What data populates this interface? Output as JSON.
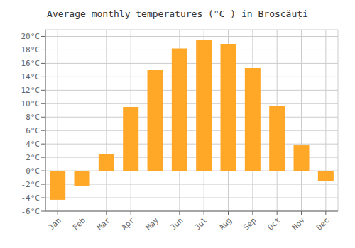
{
  "chart_data": {
    "type": "bar",
    "title": "Average monthly temperatures (°C ) in Broscăuți",
    "categories": [
      "Jan",
      "Feb",
      "Mar",
      "Apr",
      "May",
      "Jun",
      "Jul",
      "Aug",
      "Sep",
      "Oct",
      "Nov",
      "Dec"
    ],
    "values": [
      -4.3,
      -2.2,
      2.5,
      9.5,
      15.0,
      18.2,
      19.5,
      18.9,
      15.3,
      9.7,
      3.8,
      -1.5
    ],
    "color": "#FFA726",
    "ylim": [
      -6,
      21
    ],
    "yticks": [
      {
        "value": -6,
        "label": "-6°C"
      },
      {
        "value": -4,
        "label": "-4°C"
      },
      {
        "value": -2,
        "label": "-2°C"
      },
      {
        "value": 0,
        "label": "0°C"
      },
      {
        "value": 2,
        "label": "2°C"
      },
      {
        "value": 4,
        "label": "4°C"
      },
      {
        "value": 6,
        "label": "6°C"
      },
      {
        "value": 8,
        "label": "8°C"
      },
      {
        "value": 10,
        "label": "10°C"
      },
      {
        "value": 12,
        "label": "12°C"
      },
      {
        "value": 14,
        "label": "14°C"
      },
      {
        "value": 16,
        "label": "16°C"
      },
      {
        "value": 18,
        "label": "18°C"
      },
      {
        "value": 20,
        "label": "20°C"
      }
    ],
    "grid": true
  }
}
